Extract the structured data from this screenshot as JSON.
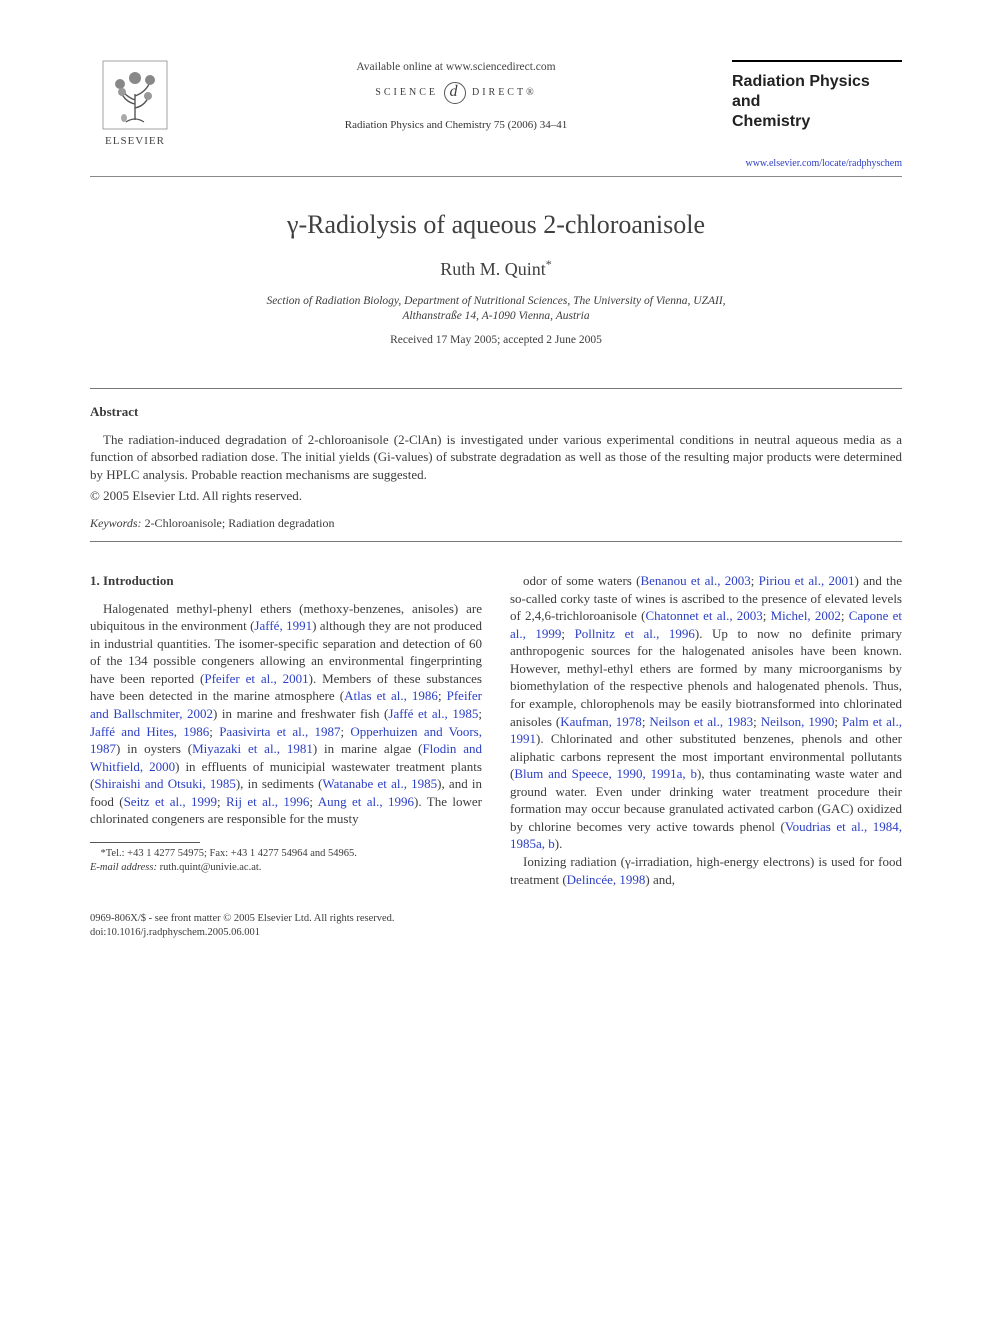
{
  "header": {
    "publisher_label": "ELSEVIER",
    "available_online": "Available online at www.sciencedirect.com",
    "sd_left": "SCIENCE",
    "sd_right": "DIRECT®",
    "citation": "Radiation Physics and Chemistry 75 (2006) 34–41",
    "journal_name_l1": "Radiation Physics",
    "journal_name_l2": "and",
    "journal_name_l3": "Chemistry",
    "journal_link": "www.elsevier.com/locate/radphyschem"
  },
  "article": {
    "title": "γ-Radiolysis of aqueous 2-chloroanisole",
    "author": "Ruth M. Quint",
    "author_mark": "*",
    "affiliation_l1": "Section of Radiation Biology, Department of Nutritional Sciences, The University of Vienna, UZAII,",
    "affiliation_l2": "Althanstraße 14, A-1090 Vienna, Austria",
    "dates": "Received 17 May 2005; accepted 2 June 2005"
  },
  "abstract": {
    "heading": "Abstract",
    "p1": "The radiation-induced degradation of 2-chloroanisole (2-ClAn) is investigated under various experimental conditions in neutral aqueous media as a function of absorbed radiation dose. The initial yields (Gi-values) of substrate degradation as well as those of the resulting major products were determined by HPLC analysis. Probable reaction mechanisms are suggested.",
    "copyright": "© 2005 Elsevier Ltd. All rights reserved.",
    "keywords_label": "Keywords:",
    "keywords_value": " 2-Chloroanisole; Radiation degradation"
  },
  "body": {
    "section1_heading": "1. Introduction",
    "col1_html": "Halogenated methyl-phenyl ethers (methoxy-benzenes, anisoles) are ubiquitous in the environment (<span class='ref'>Jaffé, 1991</span>) although they are not produced in industrial quantities. The isomer-specific separation and detection of 60 of the 134 possible congeners allowing an environmental fingerprinting have been reported (<span class='ref'>Pfeifer et al., 2001</span>). Members of these substances have been detected in the marine atmosphere (<span class='ref'>Atlas et al., 1986</span>; <span class='ref'>Pfeifer and Ballschmiter, 2002</span>) in marine and freshwater fish (<span class='ref'>Jaffé et al., 1985</span>; <span class='ref'>Jaffé and Hites, 1986</span>; <span class='ref'>Paasivirta et al., 1987</span>; <span class='ref'>Opperhuizen and Voors, 1987</span>) in oysters (<span class='ref'>Miyazaki et al., 1981</span>) in marine algae (<span class='ref'>Flodin and Whitfield, 2000</span>) in effluents of municipial wastewater treatment plants (<span class='ref'>Shiraishi and Otsuki, 1985</span>), in sediments (<span class='ref'>Watanabe et al., 1985</span>), and in food (<span class='ref'>Seitz et al., 1999</span>; <span class='ref'>Rij et al., 1996</span>; <span class='ref'>Aung et al., 1996</span>). The lower chlorinated congeners are responsible for the musty",
    "col2_html": "odor of some waters (<span class='ref'>Benanou et al., 2003</span>; <span class='ref'>Piriou et al., 2001</span>) and the so-called corky taste of wines is ascribed to the presence of elevated levels of 2,4,6-trichloroanisole (<span class='ref'>Chatonnet et al., 2003</span>; <span class='ref'>Michel, 2002</span>; <span class='ref'>Capone et al., 1999</span>; <span class='ref'>Pollnitz et al., 1996</span>). Up to now no definite primary anthropogenic sources for the halogenated anisoles have been known. However, methyl-ethyl ethers are formed by many microorganisms by biomethylation of the respective phenols and halogenated phenols. Thus, for example, chlorophenols may be easily biotransformed into chlorinated anisoles (<span class='ref'>Kaufman, 1978</span>; <span class='ref'>Neilson et al., 1983</span>; <span class='ref'>Neilson, 1990</span>; <span class='ref'>Palm et al., 1991</span>). Chlorinated and other substituted benzenes, phenols and other aliphatic carbons represent the most important environmental pollutants (<span class='ref'>Blum and Speece, 1990, 1991a, b</span>), thus contaminating waste water and ground water. Even under drinking water treatment procedure their formation may occur because granulated activated carbon (GAC) oxidized by chlorine becomes very active towards phenol (<span class='ref'>Voudrias et al., 1984, 1985a, b</span>).",
    "col2_p2_html": "Ionizing radiation (γ-irradiation, high-energy electrons) is used for food treatment (<span class='ref'>Delincée, 1998</span>) and,"
  },
  "footnote": {
    "corr_mark": "*",
    "tel": "Tel.: +43 1 4277 54975; Fax: +43 1 4277 54964 and 54965.",
    "email_label": "E-mail address:",
    "email_value": " ruth.quint@univie.ac.at."
  },
  "bottom": {
    "line1": "0969-806X/$ - see front matter © 2005 Elsevier Ltd. All rights reserved.",
    "line2": "doi:10.1016/j.radphyschem.2005.06.001"
  },
  "colors": {
    "text": "#3c3c3c",
    "link": "#2b3fc4",
    "rule": "#888888",
    "logo_orange": "#e77817"
  }
}
